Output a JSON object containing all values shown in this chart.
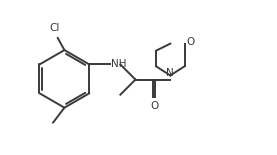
{
  "bg_color": "#ffffff",
  "line_color": "#3a3a3a",
  "line_width": 1.4,
  "font_size": 7.5,
  "text_color": "#3a3a3a",
  "xlim": [
    0,
    10
  ],
  "ylim": [
    0,
    5.6
  ]
}
